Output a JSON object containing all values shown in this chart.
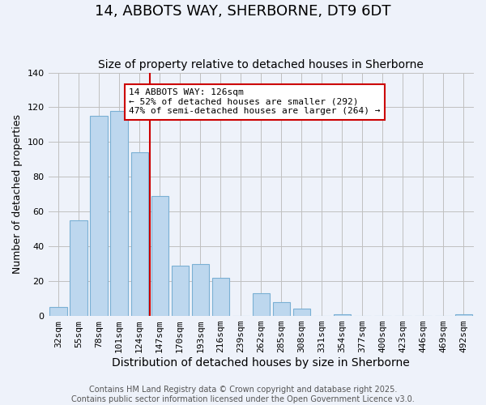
{
  "title": "14, ABBOTS WAY, SHERBORNE, DT9 6DT",
  "subtitle": "Size of property relative to detached houses in Sherborne",
  "xlabel": "Distribution of detached houses by size in Sherborne",
  "ylabel": "Number of detached properties",
  "bar_labels": [
    "32sqm",
    "55sqm",
    "78sqm",
    "101sqm",
    "124sqm",
    "147sqm",
    "170sqm",
    "193sqm",
    "216sqm",
    "239sqm",
    "262sqm",
    "285sqm",
    "308sqm",
    "331sqm",
    "354sqm",
    "377sqm",
    "400sqm",
    "423sqm",
    "446sqm",
    "469sqm",
    "492sqm"
  ],
  "bar_values": [
    5,
    55,
    115,
    118,
    94,
    69,
    29,
    30,
    22,
    0,
    13,
    8,
    4,
    0,
    1,
    0,
    0,
    0,
    0,
    0,
    1
  ],
  "bar_color": "#bdd7ee",
  "bar_edge_color": "#7ab0d4",
  "vline_x": 4.5,
  "vline_color": "#cc0000",
  "annotation_title": "14 ABBOTS WAY: 126sqm",
  "annotation_line1": "← 52% of detached houses are smaller (292)",
  "annotation_line2": "47% of semi-detached houses are larger (264) →",
  "annotation_box_color": "#ffffff",
  "annotation_box_edge": "#cc0000",
  "ylim": [
    0,
    140
  ],
  "grid_color": "#c0c0c0",
  "background_color": "#eef2fa",
  "footer1": "Contains HM Land Registry data © Crown copyright and database right 2025.",
  "footer2": "Contains public sector information licensed under the Open Government Licence v3.0.",
  "title_fontsize": 13,
  "subtitle_fontsize": 10,
  "xlabel_fontsize": 10,
  "ylabel_fontsize": 9,
  "tick_fontsize": 8,
  "footer_fontsize": 7
}
